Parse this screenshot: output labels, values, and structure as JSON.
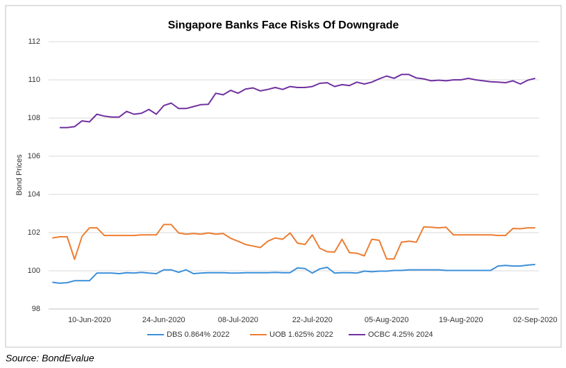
{
  "chart_data": {
    "type": "line",
    "title": "Singapore Banks Face Risks Of Downgrade",
    "y_label": "Bond Prices",
    "source": "Source: BondEvalue",
    "categories": [
      null,
      null,
      null,
      null,
      null,
      "10-Jun-2020",
      null,
      null,
      null,
      null,
      null,
      null,
      null,
      null,
      null,
      "24-Jun-2020",
      null,
      null,
      null,
      null,
      null,
      null,
      null,
      null,
      null,
      "08-Jul-2020",
      null,
      null,
      null,
      null,
      null,
      null,
      null,
      null,
      null,
      "22-Jul-2020",
      null,
      null,
      null,
      null,
      null,
      null,
      null,
      null,
      null,
      "05-Aug-2020",
      null,
      null,
      null,
      null,
      null,
      null,
      null,
      null,
      null,
      "19-Aug-2020",
      null,
      null,
      null,
      null,
      null,
      null,
      null,
      null,
      null,
      "02-Sep-2020"
    ],
    "series": [
      {
        "name": "DBS 0.864% 2022",
        "color": "#3a8fd9",
        "values": [
          99.4,
          99.35,
          99.38,
          99.48,
          99.48,
          99.48,
          99.88,
          99.88,
          99.88,
          99.85,
          99.9,
          99.88,
          99.92,
          99.88,
          99.85,
          100.05,
          100.05,
          99.92,
          100.05,
          99.85,
          99.88,
          99.9,
          99.9,
          99.9,
          99.88,
          99.88,
          99.9,
          99.9,
          99.9,
          99.9,
          99.92,
          99.9,
          99.9,
          100.15,
          100.12,
          99.88,
          100.1,
          100.18,
          99.88,
          99.9,
          99.9,
          99.88,
          99.98,
          99.95,
          99.98,
          99.98,
          100.02,
          100.02,
          100.05,
          100.05,
          100.05,
          100.05,
          100.05,
          100.02,
          100.02,
          100.02,
          100.02,
          100.02,
          100.02,
          100.02,
          100.25,
          100.28,
          100.25,
          100.25,
          100.3,
          100.33
        ]
      },
      {
        "name": "UOB 1.625% 2022",
        "color": "#ed7d31",
        "values": [
          101.72,
          101.78,
          101.78,
          100.6,
          101.8,
          102.25,
          102.25,
          101.85,
          101.85,
          101.85,
          101.85,
          101.85,
          101.88,
          101.88,
          101.88,
          102.42,
          102.42,
          101.98,
          101.92,
          101.95,
          101.92,
          101.98,
          101.92,
          101.95,
          101.7,
          101.55,
          101.38,
          101.3,
          101.22,
          101.55,
          101.72,
          101.65,
          101.98,
          101.45,
          101.38,
          101.88,
          101.18,
          101.0,
          100.98,
          101.65,
          100.95,
          100.92,
          100.78,
          101.65,
          101.6,
          100.62,
          100.62,
          101.5,
          101.55,
          101.5,
          102.3,
          102.28,
          102.25,
          102.28,
          101.88,
          101.88,
          101.88,
          101.88,
          101.88,
          101.88,
          101.85,
          101.85,
          102.22,
          102.2,
          102.25,
          102.25
        ]
      },
      {
        "name": "OCBC 4.25% 2024",
        "color": "#7030a0",
        "values": [
          null,
          107.5,
          107.5,
          107.55,
          107.85,
          107.8,
          108.2,
          108.1,
          108.05,
          108.05,
          108.35,
          108.2,
          108.25,
          108.45,
          108.2,
          108.65,
          108.78,
          108.5,
          108.5,
          108.6,
          108.7,
          108.72,
          109.3,
          109.22,
          109.45,
          109.3,
          109.52,
          109.58,
          109.42,
          109.5,
          109.6,
          109.5,
          109.65,
          109.6,
          109.6,
          109.65,
          109.82,
          109.85,
          109.65,
          109.75,
          109.7,
          109.88,
          109.78,
          109.88,
          110.05,
          110.2,
          110.08,
          110.28,
          110.28,
          110.1,
          110.05,
          109.95,
          109.98,
          109.95,
          110.0,
          110.0,
          110.08,
          110.0,
          109.95,
          109.9,
          109.88,
          109.85,
          109.95,
          109.78,
          109.98,
          110.08
        ]
      }
    ],
    "ylim": [
      98,
      112
    ],
    "yticks": [
      98,
      100,
      102,
      104,
      106,
      108,
      110,
      112
    ],
    "grid": true
  }
}
